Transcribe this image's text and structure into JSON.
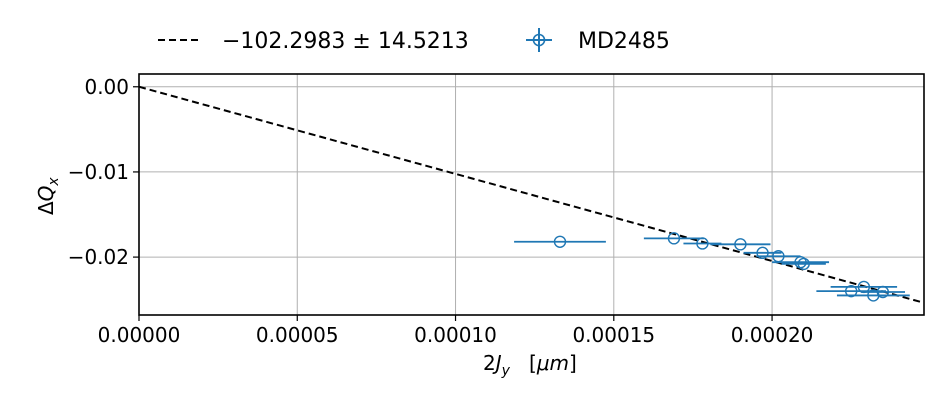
{
  "chart_data": {
    "type": "scatter",
    "xlabel": "2J_y [μm]",
    "ylabel": "ΔQ_x",
    "xlim": [
      0.0,
      0.000248
    ],
    "ylim": [
      -0.0268,
      0.0015
    ],
    "x_ticks": [
      "0.00000",
      "0.00005",
      "0.00010",
      "0.00015",
      "0.00020"
    ],
    "x_tick_values": [
      0.0,
      5e-05,
      0.0001,
      0.00015,
      0.0002
    ],
    "y_ticks": [
      "0.00",
      "−0.01",
      "−0.02"
    ],
    "y_tick_values": [
      0.0,
      -0.01,
      -0.02
    ],
    "grid": true,
    "legend_position": "top",
    "fit": {
      "label": "−102.2983 ± 14.5213",
      "slope": -102.2983,
      "intercept": 0.0,
      "style": "dashed",
      "color": "#000000"
    },
    "series": [
      {
        "name": "MD2485",
        "color": "#1f77b4",
        "marker": "open-circle",
        "points": [
          {
            "x": 0.000133,
            "y": -0.0182,
            "xerr": 1.45e-05
          },
          {
            "x": 0.000169,
            "y": -0.0178,
            "xerr": 9.5e-06
          },
          {
            "x": 0.000178,
            "y": -0.0184,
            "xerr": 6e-06
          },
          {
            "x": 0.00019,
            "y": -0.0185,
            "xerr": 9.5e-06
          },
          {
            "x": 0.000197,
            "y": -0.0195,
            "xerr": 6e-06
          },
          {
            "x": 0.000202,
            "y": -0.0199,
            "xerr": 7e-06
          },
          {
            "x": 0.000209,
            "y": -0.0206,
            "xerr": 9e-06
          },
          {
            "x": 0.00021,
            "y": -0.0208,
            "xerr": 7e-06
          },
          {
            "x": 0.000225,
            "y": -0.024,
            "xerr": 1.1e-05
          },
          {
            "x": 0.000229,
            "y": -0.0235,
            "xerr": 1.05e-05
          },
          {
            "x": 0.000232,
            "y": -0.0245,
            "xerr": 1.15e-05
          },
          {
            "x": 0.000235,
            "y": -0.0241,
            "xerr": 7e-06
          }
        ]
      }
    ]
  }
}
